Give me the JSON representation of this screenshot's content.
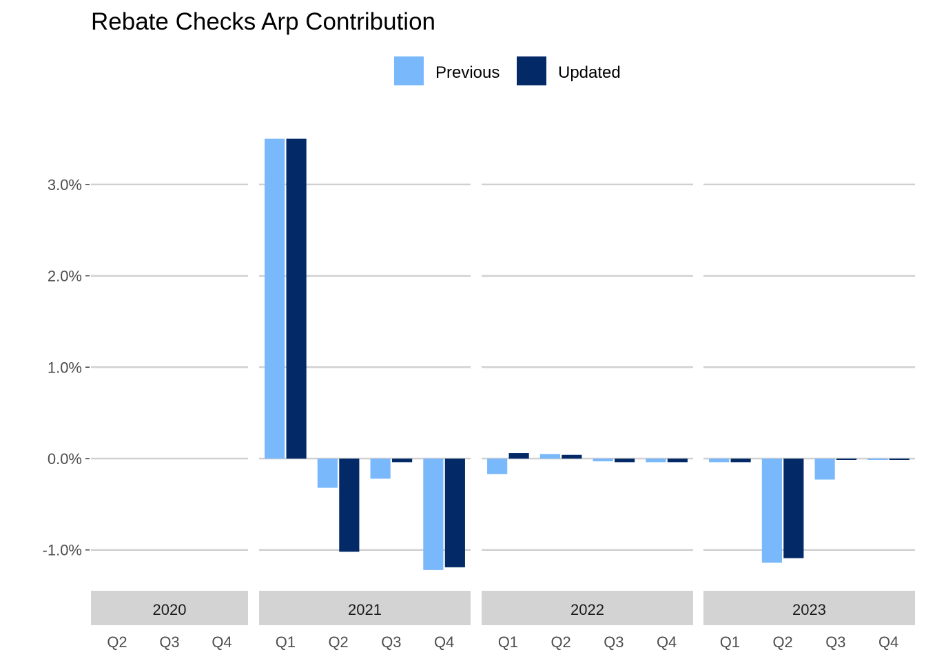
{
  "chart_data": {
    "type": "bar",
    "title": "Rebate Checks Arp Contribution",
    "xlabel": "",
    "ylabel": "",
    "ylim": [
      -1.5,
      3.6
    ],
    "yticks": [
      {
        "value": -1.0,
        "label": "-1.0%"
      },
      {
        "value": 0.0,
        "label": "0.0%"
      },
      {
        "value": 1.0,
        "label": "1.0%"
      },
      {
        "value": 2.0,
        "label": "2.0%"
      },
      {
        "value": 3.0,
        "label": "3.0%"
      }
    ],
    "legend": {
      "position": "top",
      "entries": [
        {
          "name": "Previous",
          "color": "#7ab8fc"
        },
        {
          "name": "Updated",
          "color": "#032a66"
        }
      ]
    },
    "grid": "horizontal major",
    "panels": [
      {
        "year": "2020",
        "categories": [
          "Q2",
          "Q3",
          "Q4"
        ],
        "series": [
          {
            "name": "Previous",
            "values": [
              0,
              0,
              0
            ]
          },
          {
            "name": "Updated",
            "values": [
              0,
              0,
              0
            ]
          }
        ]
      },
      {
        "year": "2021",
        "categories": [
          "Q1",
          "Q2",
          "Q3",
          "Q4"
        ],
        "series": [
          {
            "name": "Previous",
            "values": [
              3.5,
              -0.32,
              -0.22,
              -1.22
            ]
          },
          {
            "name": "Updated",
            "values": [
              3.5,
              -1.02,
              -0.04,
              -1.19
            ]
          }
        ]
      },
      {
        "year": "2022",
        "categories": [
          "Q1",
          "Q2",
          "Q3",
          "Q4"
        ],
        "series": [
          {
            "name": "Previous",
            "values": [
              -0.17,
              0.05,
              -0.03,
              -0.04
            ]
          },
          {
            "name": "Updated",
            "values": [
              0.06,
              0.04,
              -0.04,
              -0.04
            ]
          }
        ]
      },
      {
        "year": "2023",
        "categories": [
          "Q1",
          "Q2",
          "Q3",
          "Q4"
        ],
        "series": [
          {
            "name": "Previous",
            "values": [
              -0.04,
              -1.14,
              -0.23,
              -0.01
            ]
          },
          {
            "name": "Updated",
            "values": [
              -0.04,
              -1.09,
              -0.01,
              -0.01
            ]
          }
        ]
      }
    ]
  }
}
